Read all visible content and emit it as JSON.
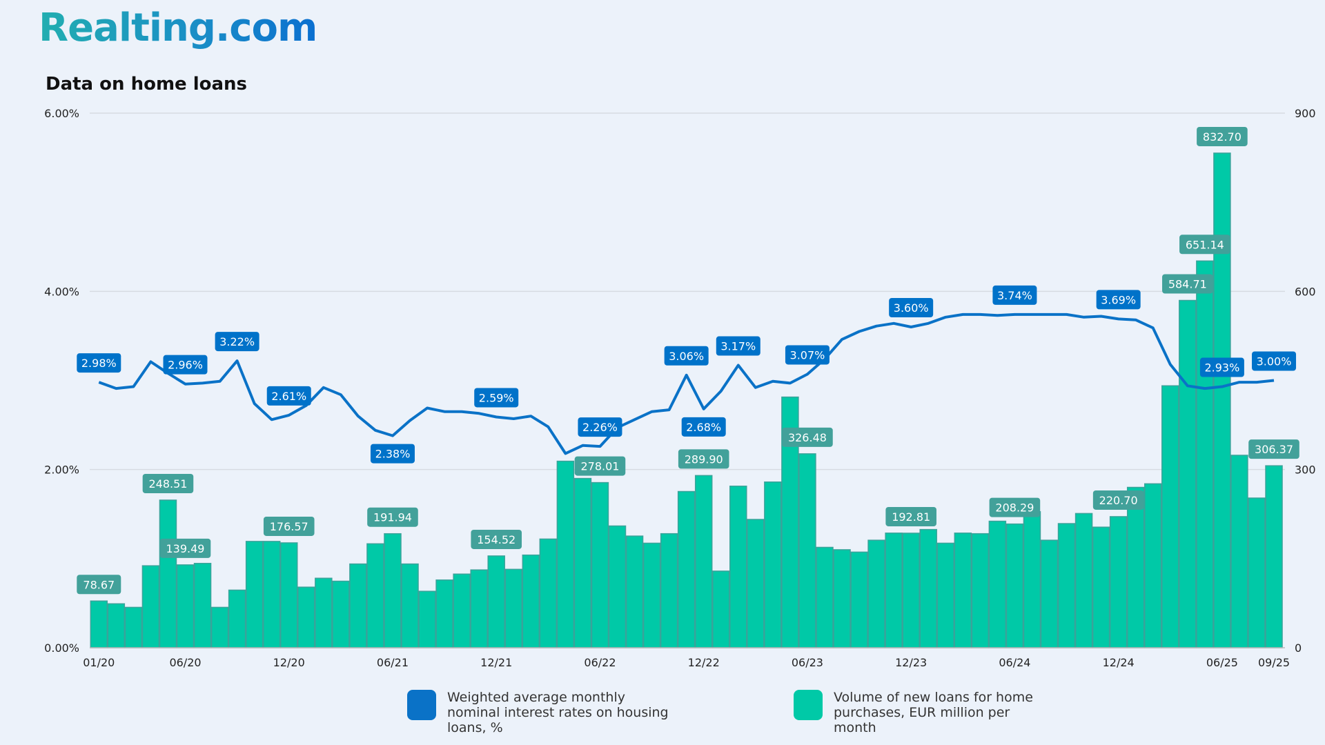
{
  "logo": "Realting.com",
  "title": "Data on home loans",
  "legend": {
    "rate": "Weighted average monthly nominal interest rates on housing loans, %",
    "volume": "Volume of new loans for home purchases, EUR million per month"
  },
  "colors": {
    "rate_line": "#0a72c7",
    "rate_label_bg": "#0072c9",
    "bars": "#00c9a7",
    "bar_border": "#3aa39a",
    "bar_label_bg": "#42a19a",
    "grid": "#d6dbe2",
    "background": "#ecf2fa"
  },
  "chart_data": {
    "type": "bar+line",
    "title": "Data on home loans",
    "grid": true,
    "legend_position": "bottom",
    "x_start": "01/20",
    "x_end": "09/25",
    "x_tick_labels": [
      {
        "index": 0,
        "label": "01/20"
      },
      {
        "index": 5,
        "label": "06/20"
      },
      {
        "index": 11,
        "label": "12/20"
      },
      {
        "index": 17,
        "label": "06/21"
      },
      {
        "index": 23,
        "label": "12/21"
      },
      {
        "index": 29,
        "label": "06/22"
      },
      {
        "index": 35,
        "label": "12/22"
      },
      {
        "index": 41,
        "label": "06/23"
      },
      {
        "index": 47,
        "label": "12/23"
      },
      {
        "index": 53,
        "label": "06/24"
      },
      {
        "index": 59,
        "label": "12/24"
      },
      {
        "index": 65,
        "label": "06/25"
      },
      {
        "index": 68,
        "label": "09/25"
      }
    ],
    "left_axis": {
      "ylim": [
        0,
        6
      ],
      "ticks": [
        "0.00%",
        "2.00%",
        "4.00%",
        "6.00%"
      ]
    },
    "right_axis": {
      "ylim": [
        0,
        900
      ],
      "ticks": [
        "0",
        "300",
        "600",
        "900"
      ]
    },
    "series": [
      {
        "name": "Weighted average monthly nominal interest rates on housing loans, %",
        "type": "line",
        "axis": "left",
        "values": [
          2.98,
          2.91,
          2.93,
          3.21,
          3.08,
          2.96,
          2.97,
          2.99,
          3.22,
          2.74,
          2.56,
          2.61,
          2.72,
          2.92,
          2.84,
          2.6,
          2.44,
          2.38,
          2.55,
          2.69,
          2.65,
          2.65,
          2.63,
          2.59,
          2.57,
          2.6,
          2.48,
          2.18,
          2.27,
          2.26,
          2.47,
          2.56,
          2.65,
          2.67,
          3.06,
          2.68,
          2.88,
          3.17,
          2.92,
          2.99,
          2.97,
          3.07,
          3.24,
          3.46,
          3.55,
          3.61,
          3.64,
          3.6,
          3.64,
          3.71,
          3.74,
          3.74,
          3.73,
          3.74,
          3.74,
          3.74,
          3.74,
          3.71,
          3.72,
          3.69,
          3.68,
          3.59,
          3.18,
          2.94,
          2.91,
          2.93,
          2.98,
          2.98,
          3.0
        ],
        "labels": [
          {
            "index": 0,
            "text": "2.98%"
          },
          {
            "index": 5,
            "text": "2.96%"
          },
          {
            "index": 8,
            "text": "3.22%"
          },
          {
            "index": 11,
            "text": "2.61%"
          },
          {
            "index": 17,
            "text": "2.38%",
            "pos": "below"
          },
          {
            "index": 23,
            "text": "2.59%"
          },
          {
            "index": 29,
            "text": "2.26%"
          },
          {
            "index": 34,
            "text": "3.06%"
          },
          {
            "index": 35,
            "text": "2.68%",
            "pos": "below"
          },
          {
            "index": 37,
            "text": "3.17%"
          },
          {
            "index": 41,
            "text": "3.07%"
          },
          {
            "index": 47,
            "text": "3.60%"
          },
          {
            "index": 53,
            "text": "3.74%"
          },
          {
            "index": 59,
            "text": "3.69%"
          },
          {
            "index": 65,
            "text": "2.93%"
          },
          {
            "index": 68,
            "text": "3.00%"
          }
        ]
      },
      {
        "name": "Volume of new loans for home purchases, EUR million per month",
        "type": "bar",
        "axis": "right",
        "values": [
          78.67,
          74,
          68,
          138,
          248.51,
          139.49,
          142,
          68,
          97,
          179,
          179,
          176.57,
          102,
          117,
          112,
          141,
          175,
          191.94,
          141,
          95,
          114,
          124,
          131,
          154.52,
          132,
          156,
          183,
          314,
          285,
          278.01,
          205,
          188,
          176,
          192,
          263,
          289.9,
          129,
          272,
          216,
          279,
          422,
          326.48,
          169,
          165,
          161,
          181,
          193,
          192.81,
          199,
          176,
          193,
          192,
          213,
          208.29,
          229,
          181,
          209,
          226,
          203,
          220.7,
          270,
          276,
          441,
          584.71,
          651.14,
          832.7,
          324,
          252,
          306.37
        ],
        "labels": [
          {
            "index": 0,
            "text": "78.67"
          },
          {
            "index": 4,
            "text": "248.51"
          },
          {
            "index": 5,
            "text": "139.49"
          },
          {
            "index": 11,
            "text": "176.57"
          },
          {
            "index": 17,
            "text": "191.94"
          },
          {
            "index": 23,
            "text": "154.52"
          },
          {
            "index": 29,
            "text": "278.01"
          },
          {
            "index": 35,
            "text": "289.90"
          },
          {
            "index": 41,
            "text": "326.48"
          },
          {
            "index": 47,
            "text": "192.81"
          },
          {
            "index": 53,
            "text": "208.29"
          },
          {
            "index": 59,
            "text": "220.70"
          },
          {
            "index": 63,
            "text": "584.71"
          },
          {
            "index": 64,
            "text": "651.14"
          },
          {
            "index": 65,
            "text": "832.70"
          },
          {
            "index": 68,
            "text": "306.37"
          }
        ]
      }
    ]
  }
}
